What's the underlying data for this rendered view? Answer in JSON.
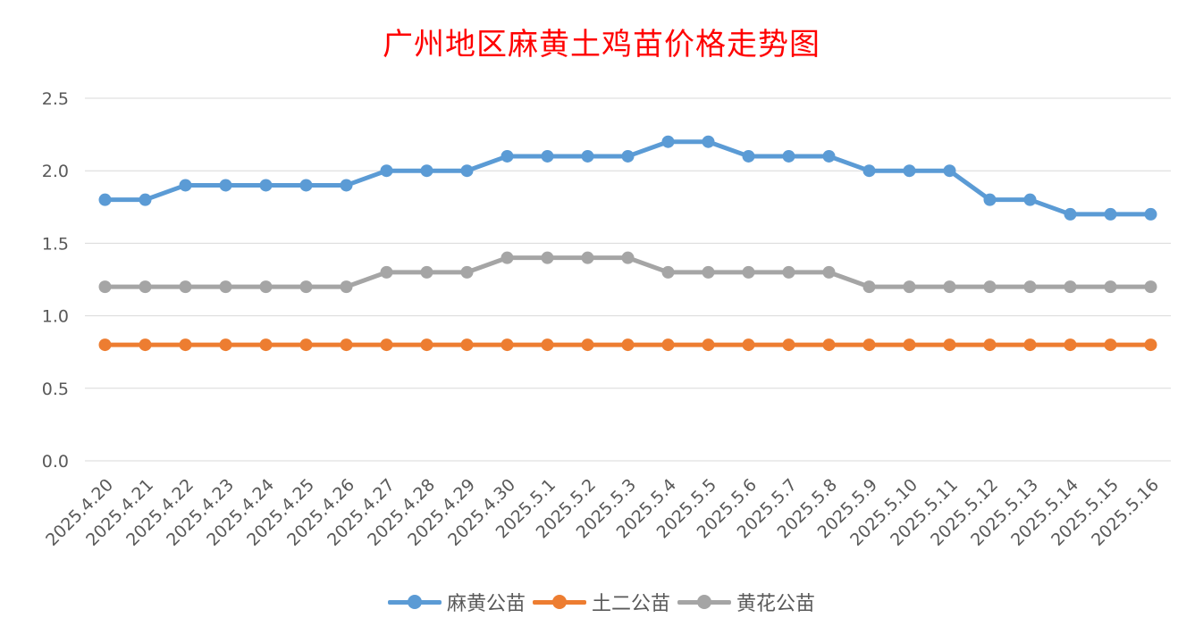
{
  "chart_data": {
    "type": "line",
    "title": "广州地区麻黄土鸡苗价格走势图",
    "xlabel": "",
    "ylabel": "",
    "categories": [
      "2025.4.20",
      "2025.4.21",
      "2025.4.22",
      "2025.4.23",
      "2025.4.24",
      "2025.4.25",
      "2025.4.26",
      "2025.4.27",
      "2025.4.28",
      "2025.4.29",
      "2025.4.30",
      "2025.5.1",
      "2025.5.2",
      "2025.5.3",
      "2025.5.4",
      "2025.5.5",
      "2025.5.6",
      "2025.5.7",
      "2025.5.8",
      "2025.5.9",
      "2025.5.10",
      "2025.5.11",
      "2025.5.12",
      "2025.5.13",
      "2025.5.14",
      "2025.5.15",
      "2025.5.16"
    ],
    "ylim": [
      0,
      2.5
    ],
    "yticks": [
      "0.0",
      "0.5",
      "1.0",
      "1.5",
      "2.0",
      "2.5"
    ],
    "grid": true,
    "legend_position": "bottom",
    "series": [
      {
        "name": "麻黄公苗",
        "color": "#5b9bd5",
        "values": [
          1.8,
          1.8,
          1.9,
          1.9,
          1.9,
          1.9,
          1.9,
          2.0,
          2.0,
          2.0,
          2.1,
          2.1,
          2.1,
          2.1,
          2.2,
          2.2,
          2.1,
          2.1,
          2.1,
          2.0,
          2.0,
          2.0,
          1.8,
          1.8,
          1.7,
          1.7,
          1.7
        ]
      },
      {
        "name": "土二公苗",
        "color": "#ed7d31",
        "values": [
          0.8,
          0.8,
          0.8,
          0.8,
          0.8,
          0.8,
          0.8,
          0.8,
          0.8,
          0.8,
          0.8,
          0.8,
          0.8,
          0.8,
          0.8,
          0.8,
          0.8,
          0.8,
          0.8,
          0.8,
          0.8,
          0.8,
          0.8,
          0.8,
          0.8,
          0.8,
          0.8
        ]
      },
      {
        "name": "黄花公苗",
        "color": "#a5a5a5",
        "values": [
          1.2,
          1.2,
          1.2,
          1.2,
          1.2,
          1.2,
          1.2,
          1.3,
          1.3,
          1.3,
          1.4,
          1.4,
          1.4,
          1.4,
          1.3,
          1.3,
          1.3,
          1.3,
          1.3,
          1.2,
          1.2,
          1.2,
          1.2,
          1.2,
          1.2,
          1.2,
          1.2
        ]
      }
    ],
    "title_color": "#ff0000"
  }
}
